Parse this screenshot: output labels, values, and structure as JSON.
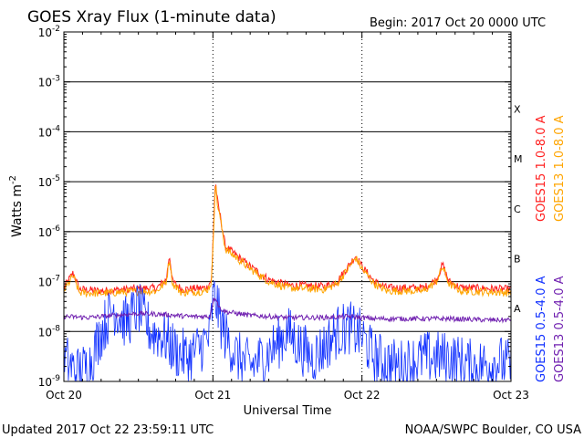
{
  "chart_data": {
    "type": "line",
    "title": "GOES Xray Flux (1-minute data)",
    "begin_label": "Begin:  2017 Oct 20 0000 UTC",
    "ylabel_main": "Watts m",
    "ylabel_exp": "-2",
    "xlabel": "Universal Time",
    "x_ticks": [
      "Oct 20",
      "Oct 21",
      "Oct 22",
      "Oct 23"
    ],
    "y_scale": "log",
    "y_ticks": [
      {
        "base": "10",
        "exp": "-2",
        "value": 0.01
      },
      {
        "base": "10",
        "exp": "-3",
        "value": 0.001
      },
      {
        "base": "10",
        "exp": "-4",
        "value": 0.0001
      },
      {
        "base": "10",
        "exp": "-5",
        "value": 1e-05
      },
      {
        "base": "10",
        "exp": "-6",
        "value": 1e-06
      },
      {
        "base": "10",
        "exp": "-7",
        "value": 1e-07
      },
      {
        "base": "10",
        "exp": "-8",
        "value": 1e-08
      },
      {
        "base": "10",
        "exp": "-9",
        "value": 1e-09
      }
    ],
    "ylim": [
      1e-09,
      0.01
    ],
    "xlim_hours": [
      0,
      72
    ],
    "flare_classes": [
      {
        "label": "X",
        "value": 0.0003
      },
      {
        "label": "M",
        "value": 3e-05
      },
      {
        "label": "C",
        "value": 3e-06
      },
      {
        "label": "B",
        "value": 3e-07
      },
      {
        "label": "A",
        "value": 3e-08
      }
    ],
    "grid": "horizontal at decades, dotted vertical at day boundaries",
    "series": [
      {
        "name": "GOES15 1.0-8.0 A",
        "color": "#ff2020",
        "points": [
          [
            0,
            7.5e-08
          ],
          [
            1.5,
            1.5e-07
          ],
          [
            2.5,
            7e-08
          ],
          [
            6,
            6.5e-08
          ],
          [
            10,
            7e-08
          ],
          [
            15,
            7.5e-08
          ],
          [
            16.5,
            1.1e-07
          ],
          [
            17,
            3.5e-07
          ],
          [
            17.5,
            1e-07
          ],
          [
            19,
            7e-08
          ],
          [
            23,
            7.5e-08
          ],
          [
            23.8,
            1.1e-07
          ],
          [
            24.2,
            3e-06
          ],
          [
            24.4,
            1.05e-05
          ],
          [
            24.8,
            3.5e-06
          ],
          [
            25.2,
            2e-06
          ],
          [
            26,
            5e-07
          ],
          [
            27,
            4e-07
          ],
          [
            30,
            2e-07
          ],
          [
            33,
            1.1e-07
          ],
          [
            36,
            8.5e-08
          ],
          [
            42,
            8e-08
          ],
          [
            44,
            1e-07
          ],
          [
            46,
            2.2e-07
          ],
          [
            47,
            3.3e-07
          ],
          [
            48,
            2e-07
          ],
          [
            50,
            1e-07
          ],
          [
            52,
            7.5e-08
          ],
          [
            58,
            7.5e-08
          ],
          [
            60,
            1.1e-07
          ],
          [
            61,
            2.2e-07
          ],
          [
            62,
            1e-07
          ],
          [
            64,
            7.5e-08
          ],
          [
            72,
            7e-08
          ]
        ]
      },
      {
        "name": "GOES13 1.0-8.0 A",
        "color": "#ffa500",
        "points": [
          [
            0,
            6.5e-08
          ],
          [
            1.5,
            1.3e-07
          ],
          [
            2.5,
            6e-08
          ],
          [
            6,
            5.8e-08
          ],
          [
            10,
            6.2e-08
          ],
          [
            15,
            6.5e-08
          ],
          [
            16.5,
            1e-07
          ],
          [
            17,
            3e-07
          ],
          [
            17.5,
            9e-08
          ],
          [
            19,
            6e-08
          ],
          [
            23,
            6.5e-08
          ],
          [
            23.8,
            1e-07
          ],
          [
            24.2,
            2.5e-06
          ],
          [
            24.4,
            9e-06
          ],
          [
            24.8,
            3e-06
          ],
          [
            25.2,
            1.8e-06
          ],
          [
            26,
            4.5e-07
          ],
          [
            27,
            3.6e-07
          ],
          [
            30,
            1.8e-07
          ],
          [
            33,
            1e-07
          ],
          [
            36,
            7.5e-08
          ],
          [
            42,
            7e-08
          ],
          [
            44,
            9e-08
          ],
          [
            46,
            2e-07
          ],
          [
            47,
            3e-07
          ],
          [
            48,
            1.8e-07
          ],
          [
            50,
            9e-08
          ],
          [
            52,
            6.5e-08
          ],
          [
            58,
            6.5e-08
          ],
          [
            60,
            1e-07
          ],
          [
            61,
            2e-07
          ],
          [
            62,
            9e-08
          ],
          [
            64,
            6.5e-08
          ],
          [
            72,
            6e-08
          ]
        ]
      },
      {
        "name": "GOES15 0.5-4.0 A",
        "color": "#1030ff",
        "points": [
          [
            0,
            3e-09
          ],
          [
            2,
            1.5e-09
          ],
          [
            4,
            2e-09
          ],
          [
            6,
            1e-08
          ],
          [
            8,
            3e-08
          ],
          [
            10,
            1.5e-08
          ],
          [
            12,
            3e-08
          ],
          [
            14,
            1e-08
          ],
          [
            16,
            8e-09
          ],
          [
            18,
            4e-09
          ],
          [
            20,
            3e-09
          ],
          [
            22,
            5e-09
          ],
          [
            23.5,
            8e-09
          ],
          [
            24,
            4e-08
          ],
          [
            24.4,
            5e-08
          ],
          [
            25,
            2e-08
          ],
          [
            26,
            8e-09
          ],
          [
            28,
            3e-09
          ],
          [
            30,
            2e-09
          ],
          [
            32,
            3e-09
          ],
          [
            34,
            5e-09
          ],
          [
            36,
            1e-08
          ],
          [
            38,
            5e-09
          ],
          [
            40,
            3e-09
          ],
          [
            42,
            5e-09
          ],
          [
            44,
            1e-08
          ],
          [
            46,
            1.2e-08
          ],
          [
            48,
            8e-09
          ],
          [
            50,
            3e-09
          ],
          [
            54,
            2e-09
          ],
          [
            58,
            3e-09
          ],
          [
            62,
            3e-09
          ],
          [
            66,
            2e-09
          ],
          [
            70,
            2.5e-09
          ],
          [
            72,
            2e-09
          ]
        ]
      },
      {
        "name": "GOES13 0.5-4.0 A",
        "color": "#7020b0",
        "points": [
          [
            0,
            2e-08
          ],
          [
            4,
            1.9e-08
          ],
          [
            8,
            2.1e-08
          ],
          [
            12,
            2.3e-08
          ],
          [
            16,
            2.2e-08
          ],
          [
            20,
            2e-08
          ],
          [
            23.5,
            2e-08
          ],
          [
            24,
            4e-08
          ],
          [
            24.4,
            5e-08
          ],
          [
            25,
            3e-08
          ],
          [
            26,
            2.5e-08
          ],
          [
            30,
            2.1e-08
          ],
          [
            36,
            1.9e-08
          ],
          [
            42,
            1.9e-08
          ],
          [
            46,
            2e-08
          ],
          [
            50,
            1.8e-08
          ],
          [
            56,
            1.8e-08
          ],
          [
            62,
            1.8e-08
          ],
          [
            68,
            1.7e-08
          ],
          [
            72,
            1.7e-08
          ]
        ]
      }
    ]
  },
  "footer": {
    "updated": "Updated 2017 Oct 22 23:59:11 UTC",
    "source": "NOAA/SWPC Boulder, CO USA"
  }
}
